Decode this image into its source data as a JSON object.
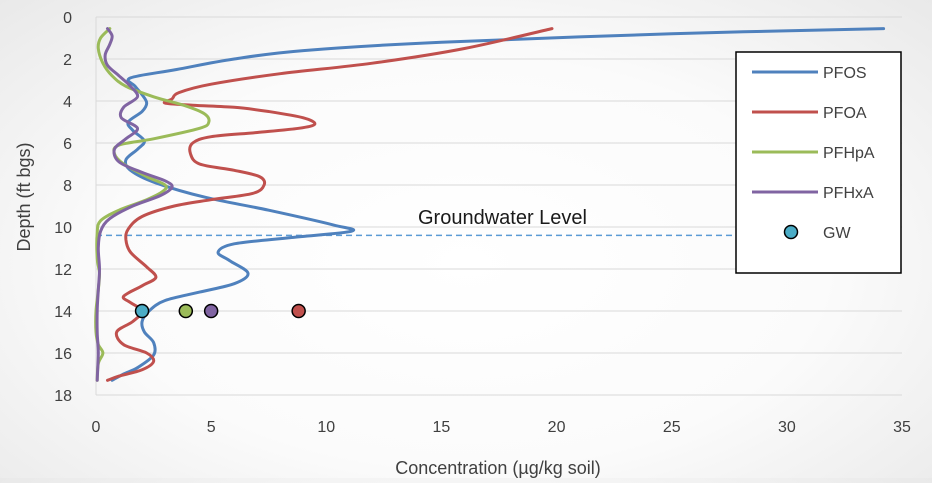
{
  "chart_data": {
    "type": "line",
    "xlabel": "Concentration (µg/kg soil)",
    "ylabel": "Depth (ft bgs)",
    "xlim": [
      0,
      35
    ],
    "ylim": [
      0,
      18
    ],
    "y_inverted": true,
    "x_ticks": [
      0,
      5,
      10,
      15,
      20,
      25,
      30,
      35
    ],
    "y_ticks": [
      0,
      2,
      4,
      6,
      8,
      10,
      12,
      14,
      16,
      18
    ],
    "grid": "horizontal",
    "legend_position": "right",
    "annotation": {
      "text": "Groundwater Level",
      "line_depth": 10.4,
      "line_x_range": [
        0,
        28.4
      ],
      "line_style": "dashed",
      "color": "#5b9bd5"
    },
    "series": [
      {
        "name": "PFOS",
        "color": "#4f81bd",
        "points": [
          [
            34.2,
            0.55
          ],
          [
            25,
            0.8
          ],
          [
            15,
            1.2
          ],
          [
            9,
            1.6
          ],
          [
            6,
            2.0
          ],
          [
            3.5,
            2.5
          ],
          [
            1.5,
            2.9
          ],
          [
            1.7,
            3.3
          ],
          [
            2.0,
            3.7
          ],
          [
            2.2,
            4.1
          ],
          [
            2.0,
            4.5
          ],
          [
            1.4,
            5.0
          ],
          [
            1.6,
            5.4
          ],
          [
            2.1,
            5.9
          ],
          [
            1.8,
            6.3
          ],
          [
            1.3,
            6.8
          ],
          [
            1.5,
            7.3
          ],
          [
            2.6,
            7.9
          ],
          [
            4.8,
            8.6
          ],
          [
            7.5,
            9.2
          ],
          [
            10.3,
            9.9
          ],
          [
            11.1,
            10.2
          ],
          [
            8.5,
            10.5
          ],
          [
            6.0,
            10.8
          ],
          [
            5.3,
            11.2
          ],
          [
            5.8,
            11.6
          ],
          [
            6.6,
            12.2
          ],
          [
            6.0,
            12.7
          ],
          [
            4.5,
            13.1
          ],
          [
            3.0,
            13.5
          ],
          [
            2.3,
            14.0
          ],
          [
            2.0,
            14.5
          ],
          [
            2.1,
            15.0
          ],
          [
            2.5,
            15.5
          ],
          [
            2.5,
            16.1
          ],
          [
            1.8,
            16.7
          ],
          [
            1.2,
            17.0
          ],
          [
            0.7,
            17.3
          ]
        ]
      },
      {
        "name": "PFOA",
        "color": "#c0504d",
        "points": [
          [
            19.8,
            0.55
          ],
          [
            16,
            1.5
          ],
          [
            12,
            2.2
          ],
          [
            8,
            2.7
          ],
          [
            5.0,
            3.2
          ],
          [
            3.6,
            3.6
          ],
          [
            3.3,
            3.9
          ],
          [
            3.0,
            4.1
          ],
          [
            4.2,
            4.2
          ],
          [
            6.0,
            4.3
          ],
          [
            7.5,
            4.5
          ],
          [
            9.0,
            4.8
          ],
          [
            9.5,
            5.1
          ],
          [
            8.8,
            5.3
          ],
          [
            7.0,
            5.5
          ],
          [
            5.0,
            5.7
          ],
          [
            4.2,
            6.0
          ],
          [
            4.1,
            6.5
          ],
          [
            4.5,
            7.0
          ],
          [
            6.0,
            7.3
          ],
          [
            7.1,
            7.6
          ],
          [
            7.3,
            8.0
          ],
          [
            6.8,
            8.4
          ],
          [
            5.0,
            8.7
          ],
          [
            3.4,
            9.0
          ],
          [
            2.0,
            9.5
          ],
          [
            1.4,
            10.1
          ],
          [
            1.3,
            10.6
          ],
          [
            1.5,
            11.2
          ],
          [
            2.2,
            11.9
          ],
          [
            2.6,
            12.4
          ],
          [
            2.0,
            12.8
          ],
          [
            1.2,
            13.3
          ],
          [
            1.5,
            13.6
          ],
          [
            2.0,
            14.0
          ],
          [
            1.6,
            14.5
          ],
          [
            0.9,
            15.0
          ],
          [
            1.2,
            15.6
          ],
          [
            2.2,
            16.0
          ],
          [
            2.5,
            16.4
          ],
          [
            2.0,
            16.8
          ],
          [
            1.0,
            17.1
          ],
          [
            0.5,
            17.3
          ]
        ]
      },
      {
        "name": "PFHpA",
        "color": "#9bbb59",
        "points": [
          [
            0.6,
            0.55
          ],
          [
            0.2,
            1.0
          ],
          [
            0.1,
            1.5
          ],
          [
            0.3,
            2.2
          ],
          [
            0.7,
            2.8
          ],
          [
            1.3,
            3.3
          ],
          [
            2.5,
            3.8
          ],
          [
            3.8,
            4.2
          ],
          [
            4.7,
            4.6
          ],
          [
            4.9,
            5.0
          ],
          [
            4.5,
            5.3
          ],
          [
            2.5,
            5.8
          ],
          [
            1.0,
            6.1
          ],
          [
            0.8,
            6.5
          ],
          [
            1.2,
            7.0
          ],
          [
            2.2,
            7.6
          ],
          [
            3.0,
            8.0
          ],
          [
            2.9,
            8.3
          ],
          [
            2.2,
            8.7
          ],
          [
            1.0,
            9.2
          ],
          [
            0.2,
            9.7
          ],
          [
            0.05,
            10.3
          ],
          [
            0.05,
            11.5
          ],
          [
            0.15,
            12.2
          ],
          [
            0.1,
            13.0
          ],
          [
            0.0,
            14.0
          ],
          [
            0.0,
            15.0
          ],
          [
            0.1,
            15.6
          ],
          [
            0.3,
            16.0
          ],
          [
            0.1,
            16.5
          ],
          [
            0.05,
            17.3
          ]
        ]
      },
      {
        "name": "PFHxA",
        "color": "#8064a2",
        "points": [
          [
            0.5,
            0.55
          ],
          [
            0.7,
            0.9
          ],
          [
            0.6,
            1.3
          ],
          [
            0.4,
            1.8
          ],
          [
            0.5,
            2.3
          ],
          [
            1.0,
            2.8
          ],
          [
            1.5,
            3.3
          ],
          [
            1.8,
            3.8
          ],
          [
            1.2,
            4.3
          ],
          [
            1.1,
            4.8
          ],
          [
            1.8,
            5.3
          ],
          [
            1.3,
            5.8
          ],
          [
            0.8,
            6.3
          ],
          [
            1.0,
            6.9
          ],
          [
            2.0,
            7.4
          ],
          [
            3.0,
            7.8
          ],
          [
            3.3,
            8.1
          ],
          [
            2.8,
            8.5
          ],
          [
            1.6,
            9.0
          ],
          [
            0.6,
            9.6
          ],
          [
            0.2,
            10.2
          ],
          [
            0.1,
            11.0
          ],
          [
            0.15,
            12.0
          ],
          [
            0.1,
            13.0
          ],
          [
            0.05,
            14.0
          ],
          [
            0.05,
            15.0
          ],
          [
            0.1,
            16.0
          ],
          [
            0.05,
            17.3
          ]
        ]
      }
    ],
    "gw_points": [
      {
        "x": 2.0,
        "y": 14.0,
        "color": "#4bacc6"
      },
      {
        "x": 3.9,
        "y": 14.0,
        "color": "#9bbb59"
      },
      {
        "x": 5.0,
        "y": 14.0,
        "color": "#8064a2"
      },
      {
        "x": 8.8,
        "y": 14.0,
        "color": "#c0504d"
      }
    ],
    "legend": [
      {
        "label": "PFOS",
        "color": "#4f81bd",
        "kind": "line"
      },
      {
        "label": "PFOA",
        "color": "#c0504d",
        "kind": "line"
      },
      {
        "label": "PFHpA",
        "color": "#9bbb59",
        "kind": "line"
      },
      {
        "label": "PFHxA",
        "color": "#8064a2",
        "kind": "line"
      },
      {
        "label": "GW",
        "color": "#4bacc6",
        "kind": "marker"
      }
    ]
  }
}
